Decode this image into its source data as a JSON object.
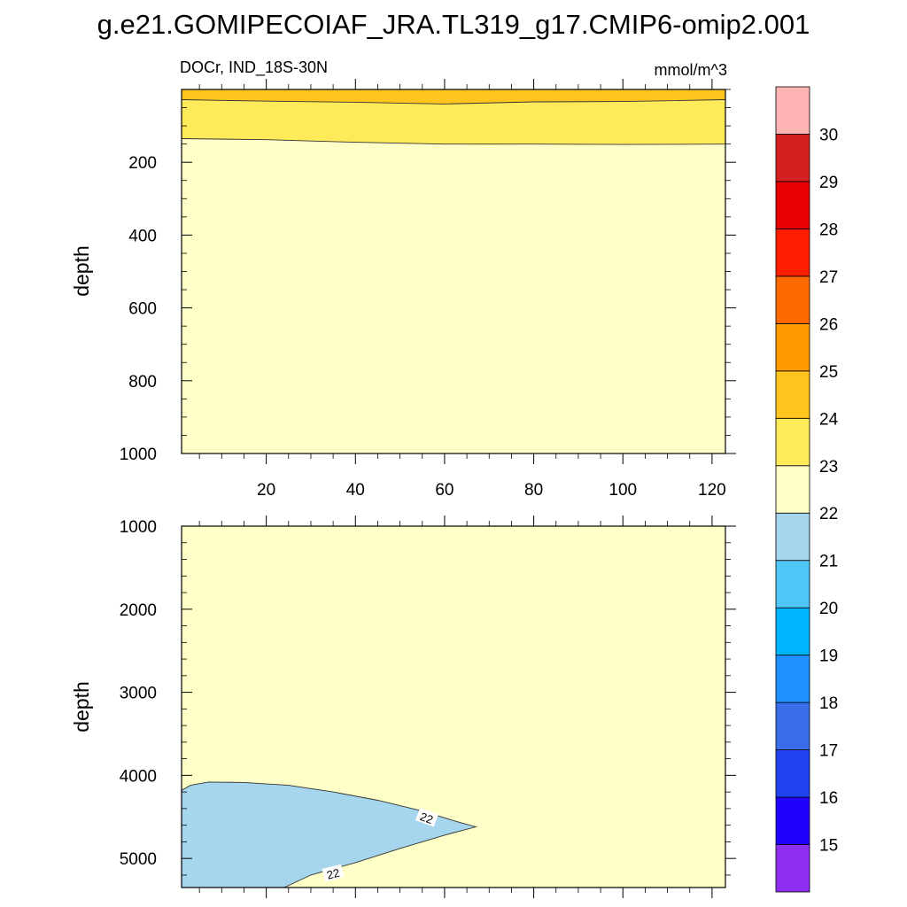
{
  "figure": {
    "title": "g.e21.GOMIPECOIAF_JRA.TL319_g17.CMIP6-omip2.001",
    "left_string": "DOCr, IND_18S-30N",
    "right_string": "mmol/m^3"
  },
  "chart_data": [
    {
      "type": "contour",
      "panel": "upper",
      "ylabel": "depth",
      "xlabel": "",
      "xlim": [
        1,
        123
      ],
      "ylim": [
        1000,
        0
      ],
      "xticks": [
        20,
        40,
        60,
        80,
        100,
        120
      ],
      "xtick_labels": [
        "20",
        "40",
        "60",
        "80",
        "100",
        "120"
      ],
      "yticks": [
        200,
        400,
        600,
        800,
        1000
      ],
      "ytick_labels": [
        "200",
        "400",
        "600",
        "800",
        "1000"
      ],
      "background_level": "22-23",
      "regions": [
        {
          "level": "23-24",
          "boundary": [
            [
              1,
              135
            ],
            [
              10,
              136
            ],
            [
              20,
              138
            ],
            [
              30,
              142
            ],
            [
              40,
              145
            ],
            [
              50,
              148
            ],
            [
              60,
              150
            ],
            [
              70,
              152
            ],
            [
              80,
              150
            ],
            [
              90,
              152
            ],
            [
              100,
              151
            ],
            [
              110,
              150
            ],
            [
              123,
              150
            ]
          ]
        },
        {
          "level": "24-25",
          "boundary": [
            [
              1,
              28
            ],
            [
              10,
              30
            ],
            [
              20,
              32
            ],
            [
              30,
              33
            ],
            [
              40,
              35
            ],
            [
              50,
              38
            ],
            [
              60,
              40
            ],
            [
              70,
              38
            ],
            [
              80,
              34
            ],
            [
              90,
              35
            ],
            [
              100,
              33
            ],
            [
              110,
              30
            ],
            [
              123,
              28
            ]
          ]
        }
      ],
      "contour_lines": [
        {
          "value": 23,
          "points": [
            [
              1,
              135
            ],
            [
              20,
              138
            ],
            [
              40,
              145
            ],
            [
              60,
              150
            ],
            [
              80,
              150
            ],
            [
              100,
              151
            ],
            [
              123,
              150
            ]
          ]
        },
        {
          "value": 24,
          "points": [
            [
              1,
              28
            ],
            [
              20,
              32
            ],
            [
              40,
              35
            ],
            [
              60,
              40
            ],
            [
              80,
              34
            ],
            [
              100,
              33
            ],
            [
              123,
              28
            ]
          ]
        }
      ]
    },
    {
      "type": "contour",
      "panel": "lower",
      "ylabel": "depth",
      "xlabel": "",
      "xlim": [
        1,
        123
      ],
      "ylim": [
        5350,
        1000
      ],
      "yticks": [
        1000,
        2000,
        3000,
        4000,
        5000
      ],
      "ytick_labels": [
        "1000",
        "2000",
        "3000",
        "4000",
        "5000"
      ],
      "background_level": "22-23",
      "regions": [
        {
          "level": "21-22",
          "boundary": [
            [
              1,
              4180
            ],
            [
              3,
              4120
            ],
            [
              7,
              4080
            ],
            [
              15,
              4085
            ],
            [
              25,
              4120
            ],
            [
              35,
              4200
            ],
            [
              45,
              4300
            ],
            [
              55,
              4430
            ],
            [
              63,
              4560
            ],
            [
              67,
              4620
            ],
            [
              60,
              4720
            ],
            [
              50,
              4880
            ],
            [
              40,
              5050
            ],
            [
              30,
              5200
            ],
            [
              24,
              5350
            ],
            [
              1,
              5350
            ]
          ]
        }
      ],
      "contour_lines": [
        {
          "value": 22,
          "points": [
            [
              1,
              4180
            ],
            [
              3,
              4120
            ],
            [
              7,
              4080
            ],
            [
              15,
              4085
            ],
            [
              25,
              4120
            ],
            [
              35,
              4200
            ],
            [
              45,
              4300
            ],
            [
              55,
              4430
            ],
            [
              63,
              4560
            ],
            [
              67,
              4620
            ],
            [
              60,
              4720
            ],
            [
              50,
              4880
            ],
            [
              40,
              5050
            ],
            [
              30,
              5200
            ],
            [
              24,
              5350
            ]
          ]
        }
      ],
      "contour_labels": [
        {
          "text": "22",
          "x": 56,
          "y": 4510,
          "angle": 20
        },
        {
          "text": "22",
          "x": 35,
          "y": 5180,
          "angle": -14
        }
      ]
    }
  ],
  "colorbar": {
    "levels": [
      "15",
      "16",
      "17",
      "18",
      "19",
      "20",
      "21",
      "22",
      "23",
      "24",
      "25",
      "26",
      "27",
      "28",
      "29",
      "30"
    ],
    "fill_colors": [
      "#8d2ef0",
      "#2200ff",
      "#2242f0",
      "#3a6ee8",
      "#1e90ff",
      "#00b4ff",
      "#4fc6f5",
      "#a6d6ee",
      "#ffffc8",
      "#ffeb5a",
      "#ffc51e",
      "#ff9b00",
      "#ff6a00",
      "#ff1e00",
      "#e60000",
      "#d42020",
      "#ffb4b4"
    ]
  }
}
